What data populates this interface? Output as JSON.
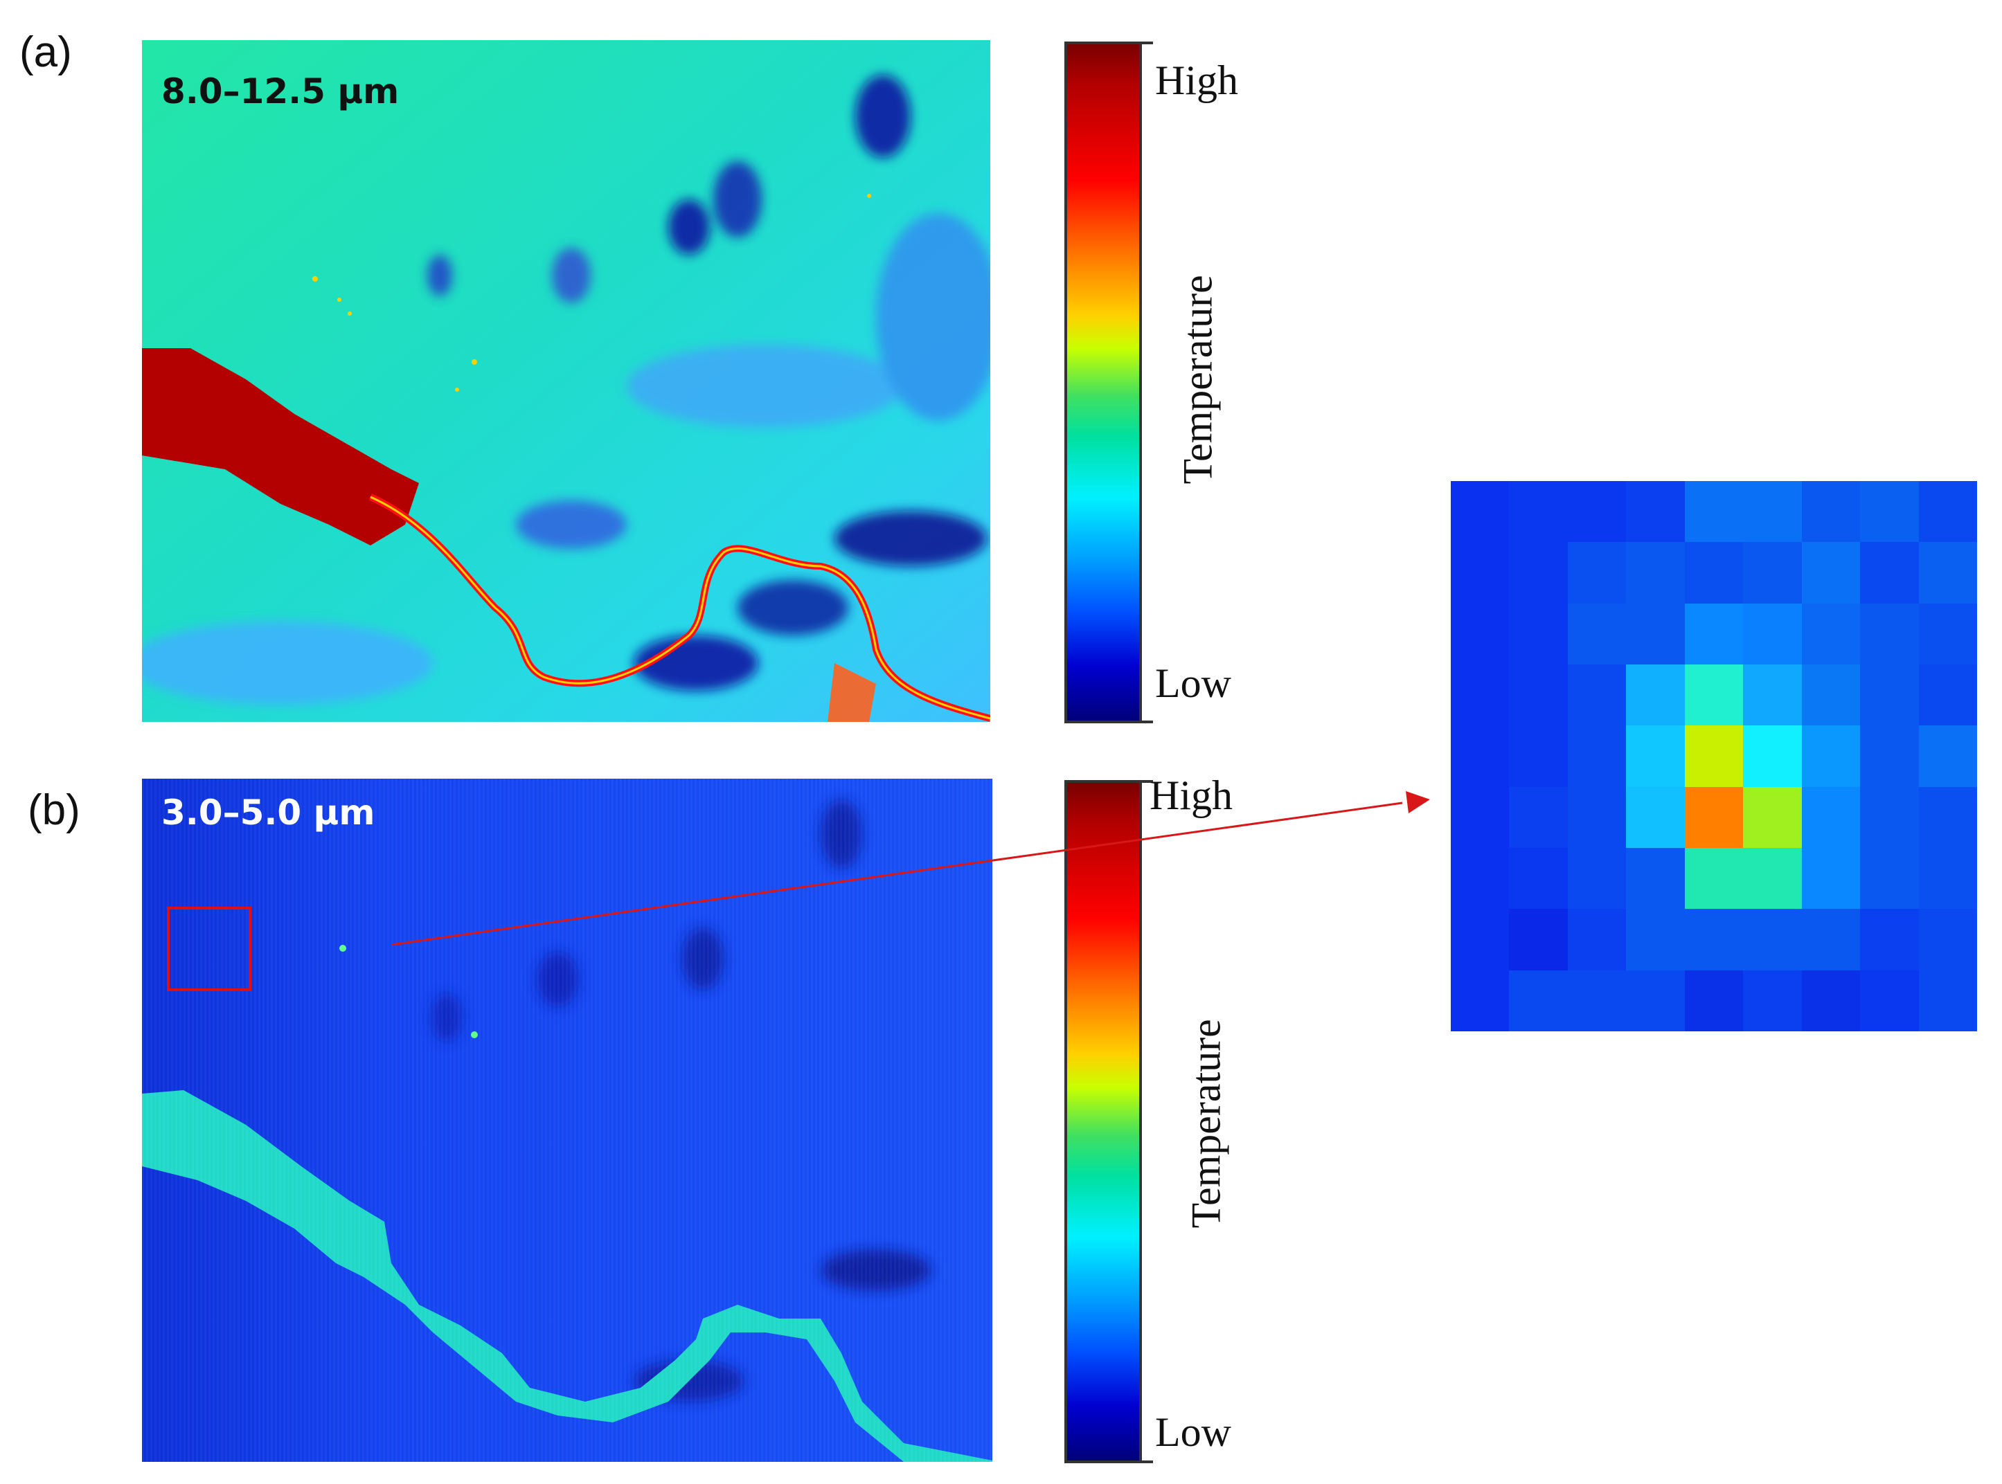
{
  "figure": {
    "panel_a": {
      "letter": "(a)",
      "band": "8.0–12.5 μm",
      "colorbar": {
        "high": "High",
        "low": "Low",
        "title": "Temperature"
      }
    },
    "panel_b": {
      "letter": "(b)",
      "band": "3.0–5.0 μm",
      "colorbar": {
        "high": "High",
        "low": "Low",
        "title": "Temperature"
      }
    },
    "colors": {
      "frame": "#333333",
      "roi_box": "#e01010",
      "arrow": "#d81818"
    }
  }
}
